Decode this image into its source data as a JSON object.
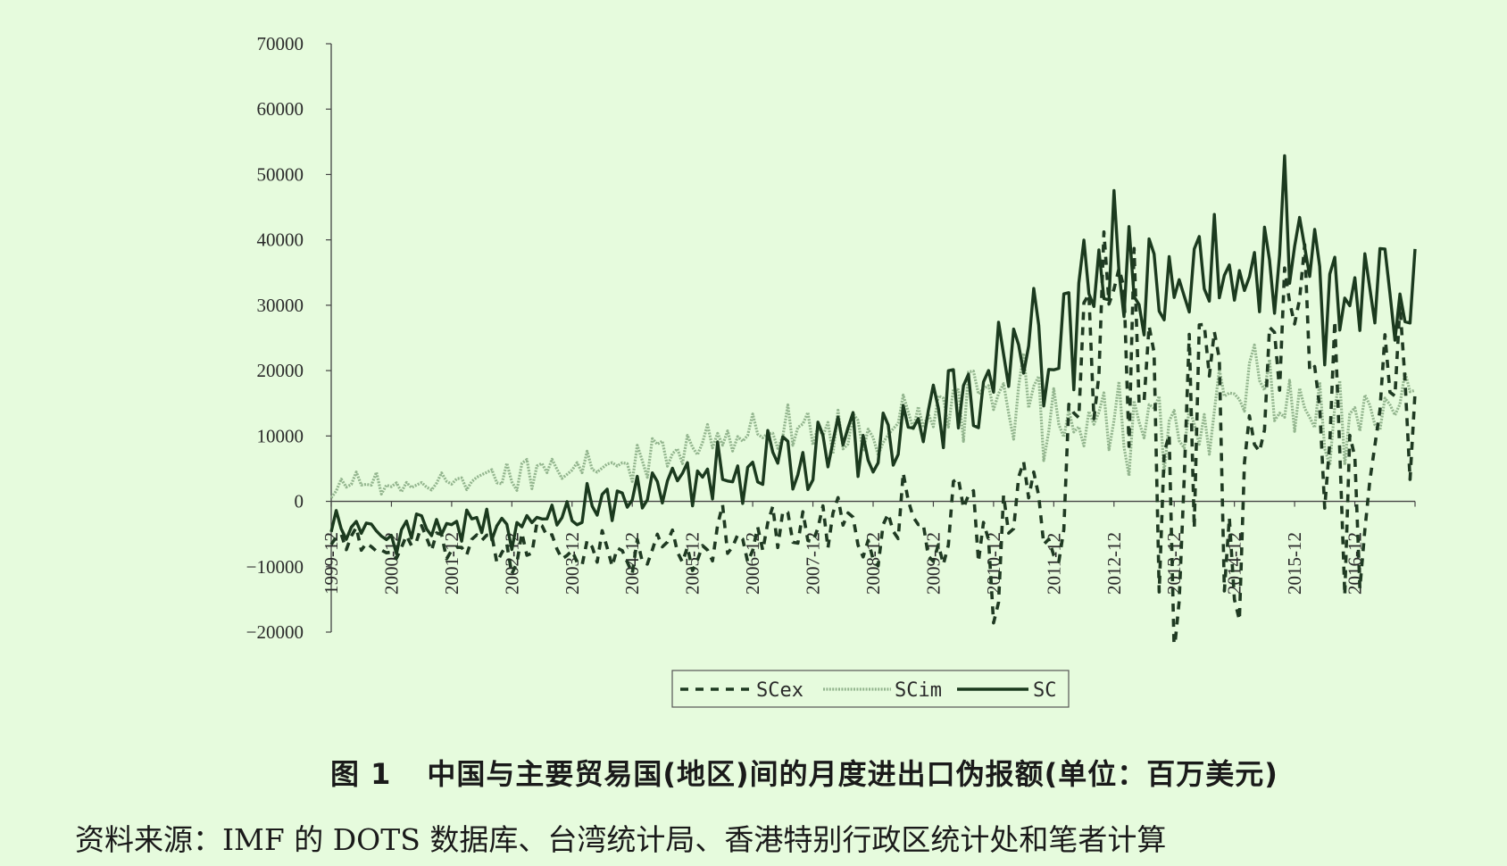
{
  "chart_data": {
    "type": "line",
    "title": "",
    "xlabel": "",
    "ylabel": "",
    "ylim": [
      -20000,
      70000
    ],
    "yticks": [
      70000,
      60000,
      50000,
      40000,
      30000,
      20000,
      10000,
      0,
      -10000,
      -20000
    ],
    "ytick_labels": [
      "70000",
      "60000",
      "50000",
      "40000",
      "30000",
      "20000",
      "10000",
      "0",
      "−10000",
      "−20000"
    ],
    "xticks": [
      "1999-12",
      "2000-12",
      "2001-12",
      "2002-12",
      "2003-12",
      "2004-12",
      "2005-12",
      "2006-12",
      "2007-12",
      "2008-12",
      "2009-12",
      "2010-12",
      "2011-12",
      "2012-12",
      "2013-12",
      "2014-12",
      "2015-12",
      "2016-12"
    ],
    "x_start": "1999-12",
    "x_end": "2017-12",
    "legend": {
      "position": "bottom",
      "border": true
    },
    "grid": false,
    "series": [
      {
        "name": "SCex",
        "style": "dashed",
        "color": "#1f3a22",
        "anchors": [
          [
            "1999-12",
            -5000
          ],
          [
            "2000-06",
            -6000
          ],
          [
            "2000-12",
            -8000
          ],
          [
            "2001-06",
            -5000
          ],
          [
            "2001-12",
            -7000
          ],
          [
            "2002-06",
            -6000
          ],
          [
            "2002-12",
            -8500
          ],
          [
            "2003-06",
            -5000
          ],
          [
            "2003-12",
            -9000
          ],
          [
            "2004-06",
            -6000
          ],
          [
            "2004-12",
            -9500
          ],
          [
            "2005-06",
            -5000
          ],
          [
            "2005-12",
            -9000
          ],
          [
            "2006-06",
            -4000
          ],
          [
            "2006-12",
            -8000
          ],
          [
            "2007-06",
            -2000
          ],
          [
            "2007-12",
            -7000
          ],
          [
            "2008-06",
            0
          ],
          [
            "2008-12",
            -10000
          ],
          [
            "2009-06",
            0
          ],
          [
            "2009-12",
            -6000
          ],
          [
            "2010-06",
            2000
          ],
          [
            "2010-12",
            -13000
          ],
          [
            "2011-06",
            8000
          ],
          [
            "2011-12",
            -10000
          ],
          [
            "2012-06",
            20000
          ],
          [
            "2012-12",
            35000
          ],
          [
            "2013-06",
            18000
          ],
          [
            "2013-12",
            -12000
          ],
          [
            "2014-06",
            30000
          ],
          [
            "2014-12",
            -11000
          ],
          [
            "2015-06",
            25000
          ],
          [
            "2015-12",
            40000
          ],
          [
            "2016-06",
            10000
          ],
          [
            "2016-12",
            -3000
          ],
          [
            "2017-06",
            18000
          ],
          [
            "2017-12",
            12000
          ]
        ],
        "amplitude": [
          1500,
          1500,
          1500,
          2000,
          2000,
          2000,
          2500,
          3000,
          3500,
          4000,
          5000,
          8000,
          12000,
          14000,
          16000,
          16000,
          15000,
          12000,
          8000
        ],
        "seed": 11
      },
      {
        "name": "SCim",
        "style": "hatched",
        "color": "#8fae8a",
        "anchors": [
          [
            "1999-12",
            2000
          ],
          [
            "2000-06",
            3000
          ],
          [
            "2000-12",
            2500
          ],
          [
            "2001-06",
            3000
          ],
          [
            "2001-12",
            2500
          ],
          [
            "2002-06",
            4000
          ],
          [
            "2002-12",
            4000
          ],
          [
            "2003-06",
            5000
          ],
          [
            "2003-12",
            5000
          ],
          [
            "2004-06",
            6000
          ],
          [
            "2004-12",
            6500
          ],
          [
            "2005-06",
            8000
          ],
          [
            "2005-12",
            8000
          ],
          [
            "2006-06",
            9000
          ],
          [
            "2006-12",
            10000
          ],
          [
            "2007-06",
            11000
          ],
          [
            "2007-12",
            10500
          ],
          [
            "2008-06",
            11000
          ],
          [
            "2008-12",
            10000
          ],
          [
            "2009-06",
            12000
          ],
          [
            "2009-12",
            13000
          ],
          [
            "2010-06",
            16000
          ],
          [
            "2010-12",
            14000
          ],
          [
            "2011-06",
            15000
          ],
          [
            "2011-12",
            14000
          ],
          [
            "2012-06",
            13000
          ],
          [
            "2012-12",
            11000
          ],
          [
            "2013-06",
            14000
          ],
          [
            "2013-12",
            10000
          ],
          [
            "2014-06",
            12000
          ],
          [
            "2014-12",
            18000
          ],
          [
            "2015-06",
            16000
          ],
          [
            "2015-12",
            14000
          ],
          [
            "2016-06",
            12000
          ],
          [
            "2016-12",
            15000
          ],
          [
            "2017-06",
            16000
          ],
          [
            "2017-12",
            18000
          ]
        ],
        "amplitude": [
          1500,
          1500,
          1500,
          2000,
          2000,
          2500,
          2500,
          3000,
          3500,
          3500,
          5000,
          7000,
          6000,
          6000,
          5000,
          5000,
          6000,
          4000,
          4000
        ],
        "seed": 23
      },
      {
        "name": "SC",
        "style": "solid",
        "color": "#1b3a1e",
        "anchors": [
          [
            "1999-12",
            -3000
          ],
          [
            "2000-06",
            -3000
          ],
          [
            "2000-12",
            -6000
          ],
          [
            "2001-06",
            -3000
          ],
          [
            "2001-12",
            -4000
          ],
          [
            "2002-06",
            -3000
          ],
          [
            "2002-12",
            -5000
          ],
          [
            "2003-06",
            -1000
          ],
          [
            "2003-12",
            -3000
          ],
          [
            "2004-06",
            0
          ],
          [
            "2004-12",
            2000
          ],
          [
            "2005-06",
            3000
          ],
          [
            "2005-12",
            2000
          ],
          [
            "2006-06",
            5000
          ],
          [
            "2006-12",
            4000
          ],
          [
            "2007-06",
            8000
          ],
          [
            "2007-12",
            6000
          ],
          [
            "2008-06",
            9000
          ],
          [
            "2008-12",
            7000
          ],
          [
            "2009-06",
            9000
          ],
          [
            "2009-12",
            13000
          ],
          [
            "2010-06",
            18000
          ],
          [
            "2010-12",
            17000
          ],
          [
            "2011-06",
            28000
          ],
          [
            "2011-12",
            22000
          ],
          [
            "2012-06",
            30000
          ],
          [
            "2012-12",
            40000
          ],
          [
            "2013-06",
            30000
          ],
          [
            "2013-12",
            32000
          ],
          [
            "2014-06",
            38000
          ],
          [
            "2014-12",
            30000
          ],
          [
            "2015-06",
            40000
          ],
          [
            "2015-12",
            42000
          ],
          [
            "2016-06",
            30000
          ],
          [
            "2016-12",
            32000
          ],
          [
            "2017-06",
            30000
          ],
          [
            "2017-12",
            32000
          ]
        ],
        "amplitude": [
          2000,
          2000,
          2000,
          2500,
          3000,
          3000,
          3500,
          4000,
          4500,
          4500,
          5500,
          7000,
          8000,
          9000,
          9000,
          9000,
          8500,
          7000,
          5000
        ],
        "seed": 37
      }
    ]
  },
  "caption": {
    "figure_number": "图 1",
    "title": "中国与主要贸易国(地区)间的月度进出口伪报额(单位：百万美元)"
  },
  "source_note": "资料来源：IMF 的 DOTS 数据库、台湾统计局、香港特别行政区统计处和笔者计算"
}
